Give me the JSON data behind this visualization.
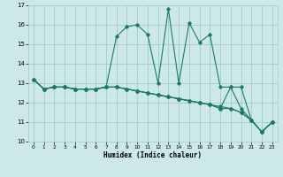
{
  "xlabel": "Humidex (Indice chaleur)",
  "xlim": [
    -0.5,
    23.5
  ],
  "ylim": [
    10,
    17
  ],
  "yticks": [
    10,
    11,
    12,
    13,
    14,
    15,
    16,
    17
  ],
  "xticks": [
    0,
    1,
    2,
    3,
    4,
    5,
    6,
    7,
    8,
    9,
    10,
    11,
    12,
    13,
    14,
    15,
    16,
    17,
    18,
    19,
    20,
    21,
    22,
    23
  ],
  "bg_color": "#cce8e8",
  "grid_color": "#aacccc",
  "line_color": "#1a7a6a",
  "series": [
    [
      13.2,
      12.7,
      12.8,
      12.8,
      12.7,
      12.7,
      12.7,
      12.8,
      15.4,
      15.9,
      16.0,
      15.5,
      13.0,
      16.8,
      13.0,
      16.1,
      15.1,
      15.5,
      12.8,
      12.8,
      11.7,
      11.1,
      10.5,
      11.0
    ],
    [
      13.2,
      12.7,
      12.8,
      12.8,
      12.7,
      12.7,
      12.7,
      12.8,
      12.8,
      12.7,
      12.6,
      12.5,
      12.4,
      12.3,
      12.2,
      12.1,
      12.0,
      11.9,
      11.8,
      11.7,
      11.5,
      11.1,
      10.5,
      11.0
    ],
    [
      13.2,
      12.7,
      12.8,
      12.8,
      12.7,
      12.7,
      12.7,
      12.8,
      12.8,
      12.7,
      12.6,
      12.5,
      12.4,
      12.3,
      12.2,
      12.1,
      12.0,
      11.9,
      11.7,
      11.7,
      11.5,
      11.1,
      10.5,
      11.0
    ],
    [
      13.2,
      12.7,
      12.8,
      12.8,
      12.7,
      12.7,
      12.7,
      12.8,
      12.8,
      12.7,
      12.6,
      12.5,
      12.4,
      12.3,
      12.2,
      12.1,
      12.0,
      11.9,
      11.7,
      12.8,
      12.8,
      11.1,
      10.5,
      11.0
    ]
  ]
}
